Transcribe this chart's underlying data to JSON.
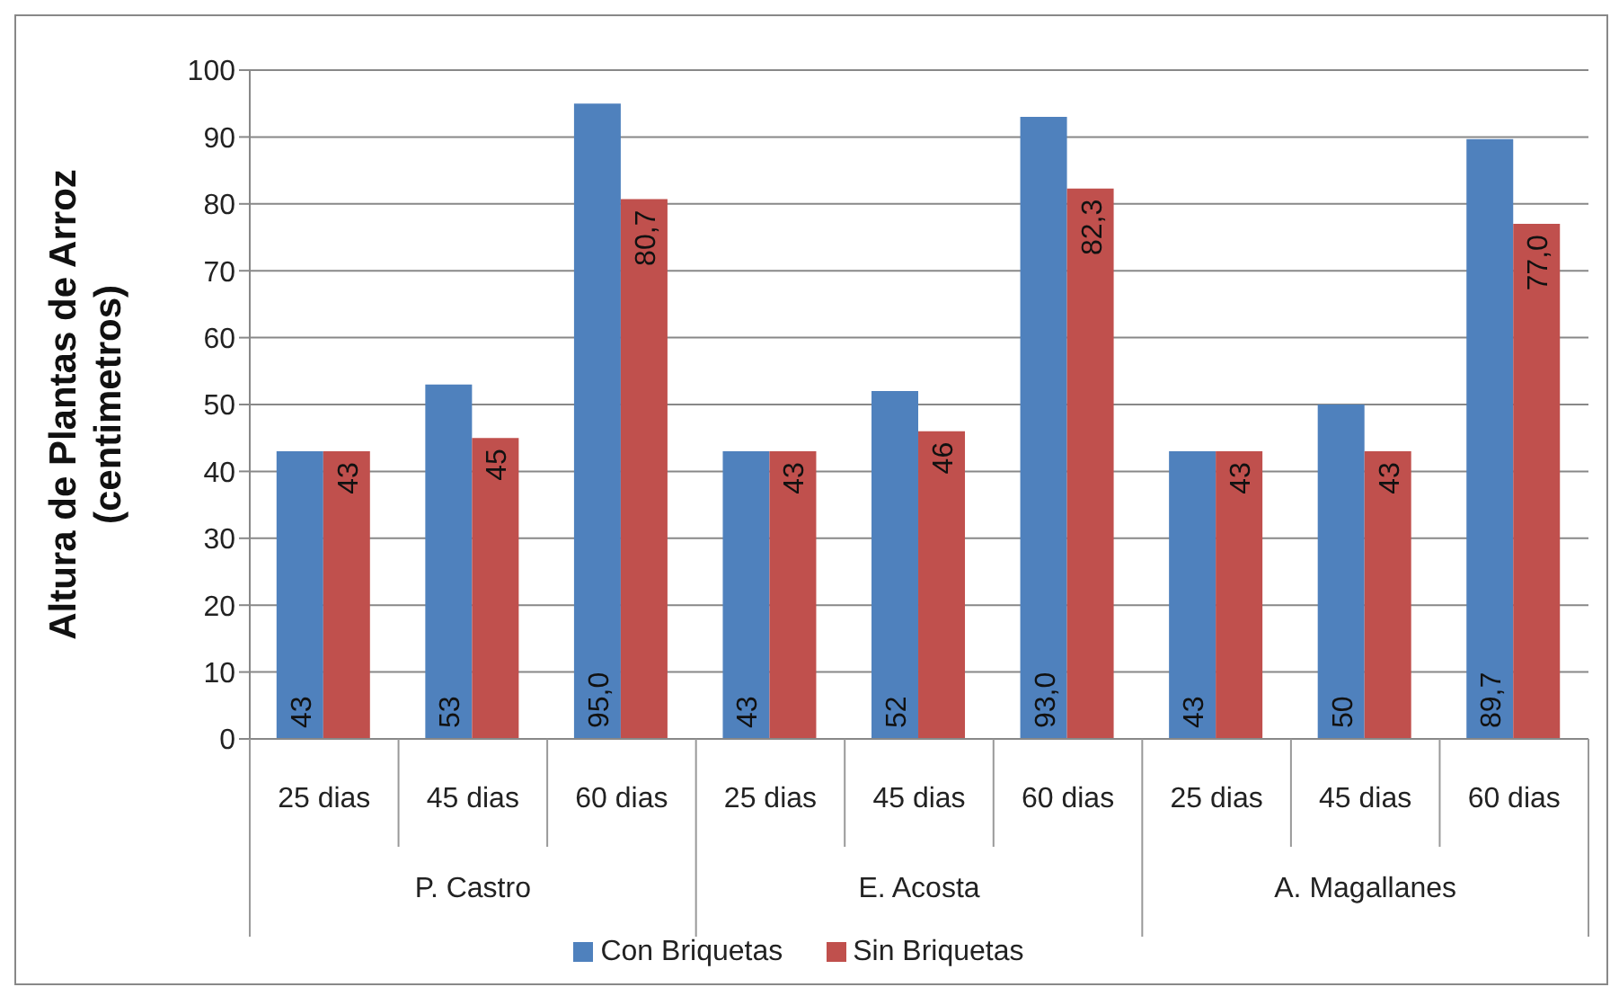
{
  "chart_data": {
    "type": "bar",
    "ylabel": "Altura de Plantas de Arroz\n(centimetros)",
    "categories": [
      "25 dias",
      "45 dias",
      "60 dias",
      "25 dias",
      "45 dias",
      "60 dias",
      "25 dias",
      "45 dias",
      "60 dias"
    ],
    "annotations": [
      "P. Castro",
      "E. Acosta",
      "A. Magallanes"
    ],
    "series": [
      {
        "name": "Con Briquetas",
        "color": "#4f81bd",
        "values": [
          43,
          53,
          95.0,
          43,
          52,
          93.0,
          43,
          50,
          89.7
        ],
        "value_labels": [
          "43",
          "53",
          "95,0",
          "43",
          "52",
          "93,0",
          "43",
          "50",
          "89,7"
        ]
      },
      {
        "name": "Sin Briquetas",
        "color": "#c0504d",
        "values": [
          43,
          45,
          80.7,
          43,
          46,
          82.3,
          43,
          43,
          77.0
        ],
        "value_labels": [
          "43",
          "45",
          "80,7",
          "43",
          "46",
          "82,3",
          "43",
          "43",
          "77,0"
        ]
      }
    ],
    "ylim": [
      0,
      100
    ],
    "yticks": [
      0,
      10,
      20,
      30,
      40,
      50,
      60,
      70,
      80,
      90,
      100
    ],
    "grid": "y",
    "legend": "bottom"
  }
}
